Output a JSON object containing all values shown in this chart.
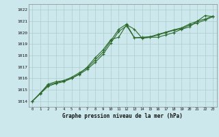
{
  "title": "Graphe pression niveau de la mer (hPa)",
  "bg_color": "#cce8ec",
  "grid_color": "#aacccc",
  "line_color": "#2d6a2d",
  "x_ticks": [
    0,
    1,
    2,
    3,
    4,
    5,
    6,
    7,
    8,
    9,
    10,
    11,
    12,
    13,
    14,
    15,
    16,
    17,
    18,
    19,
    20,
    21,
    22,
    23
  ],
  "y_ticks": [
    1014,
    1015,
    1016,
    1017,
    1018,
    1019,
    1020,
    1021,
    1022
  ],
  "ylim": [
    1013.5,
    1022.5
  ],
  "xlim": [
    -0.5,
    23.5
  ],
  "series1": [
    1014.0,
    1014.7,
    1015.5,
    1015.7,
    1015.8,
    1016.0,
    1016.4,
    1017.0,
    1017.8,
    1018.5,
    1019.4,
    1019.6,
    1020.7,
    1020.3,
    1019.5,
    1019.6,
    1019.6,
    1019.8,
    1020.0,
    1020.3,
    1020.5,
    1021.0,
    1021.5,
    1021.4
  ],
  "series2": [
    1014.0,
    1014.7,
    1015.4,
    1015.6,
    1015.8,
    1016.1,
    1016.5,
    1016.9,
    1017.6,
    1018.3,
    1019.3,
    1020.3,
    1020.75,
    1019.55,
    1019.6,
    1019.65,
    1019.85,
    1020.05,
    1020.25,
    1020.42,
    1020.75,
    1021.0,
    1021.2,
    1021.45
  ],
  "series3": [
    1014.0,
    1014.65,
    1015.3,
    1015.55,
    1015.7,
    1016.0,
    1016.35,
    1016.8,
    1017.4,
    1018.1,
    1019.1,
    1020.1,
    1020.6,
    1019.55,
    1019.55,
    1019.6,
    1019.8,
    1020.0,
    1020.2,
    1020.35,
    1020.65,
    1020.85,
    1021.1,
    1021.4
  ]
}
